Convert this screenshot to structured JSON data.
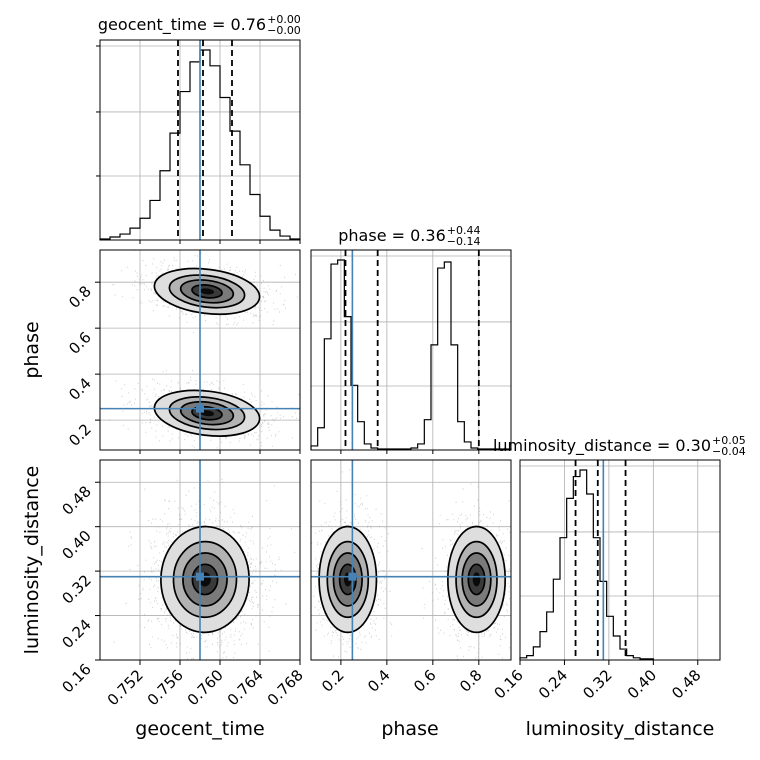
{
  "chart_data": {
    "type": "corner",
    "parameters": [
      "geocent_time",
      "phase",
      "luminosity_distance"
    ],
    "truth": {
      "geocent_time": 0.758,
      "phase": 0.25,
      "luminosity_distance": 0.31
    },
    "truth_color": "#4682b4",
    "grid": true,
    "ranges": {
      "geocent_time": [
        0.748,
        0.768
      ],
      "phase": [
        0.07,
        0.94
      ],
      "luminosity_distance": [
        0.16,
        0.52
      ]
    },
    "ticks": {
      "geocent_time": [
        "0.752",
        "0.756",
        "0.760",
        "0.764",
        "0.768"
      ],
      "phase_x": [
        "0.2",
        "0.4",
        "0.6",
        "0.8"
      ],
      "phase_y": [
        "0.2",
        "0.4",
        "0.6",
        "0.8"
      ],
      "luminosity_distance_x": [
        "0.16",
        "0.24",
        "0.32",
        "0.40",
        "0.48"
      ],
      "luminosity_distance_y": [
        "0.16",
        "0.24",
        "0.32",
        "0.40",
        "0.48"
      ]
    },
    "titles": [
      {
        "param": "geocent_time",
        "text": "geocent_time = 0.76",
        "plus": "+0.00",
        "minus": "−0.00"
      },
      {
        "param": "phase",
        "text": "phase = 0.36",
        "plus": "+0.44",
        "minus": "−0.14"
      },
      {
        "param": "luminosity_distance",
        "text": "luminosity_distance = 0.30",
        "plus": "+0.05",
        "minus": "−0.04"
      }
    ],
    "histograms": {
      "geocent_time": {
        "bin_start": 0.748,
        "bin_width": 0.001,
        "counts": [
          0.5,
          1.5,
          3,
          6,
          11,
          20,
          35,
          54,
          75,
          90,
          96,
          88,
          72,
          55,
          38,
          23,
          12,
          5,
          2,
          0.5
        ],
        "quantiles": [
          0.7558,
          0.7583,
          0.7612
        ]
      },
      "phase": {
        "bin_start": 0.07,
        "bin_width": 0.029,
        "counts": [
          2,
          11,
          55,
          92,
          94,
          66,
          32,
          14,
          3,
          1,
          0.5,
          0.5,
          0.5,
          0.5,
          0.5,
          1,
          3,
          15,
          52,
          90,
          93,
          52,
          14,
          4,
          1,
          0.5,
          0.5,
          0.5,
          0.5,
          0.5
        ],
        "quantiles": [
          0.22,
          0.36,
          0.8
        ]
      },
      "luminosity_distance": {
        "bin_start": 0.16,
        "bin_width": 0.012,
        "counts": [
          1,
          2,
          6,
          13,
          22,
          37,
          56,
          74,
          84,
          87,
          76,
          56,
          36,
          20,
          11,
          5,
          2,
          1,
          0.5,
          0.5
        ],
        "quantiles": [
          0.26,
          0.3,
          0.35
        ]
      }
    },
    "samples_2d": {
      "phase_vs_geocent_time": [
        {
          "center": [
            0.7587,
            0.76
          ],
          "weight": 0.5
        },
        {
          "center": [
            0.7587,
            0.23
          ],
          "weight": 0.5
        }
      ],
      "luminosity_distance_vs_geocent_time": [
        {
          "center": [
            0.7585,
            0.305
          ],
          "weight": 1.0
        }
      ],
      "luminosity_distance_vs_phase": [
        {
          "center": [
            0.23,
            0.305
          ],
          "weight": 0.5
        },
        {
          "center": [
            0.79,
            0.305
          ],
          "weight": 0.5
        }
      ]
    }
  }
}
